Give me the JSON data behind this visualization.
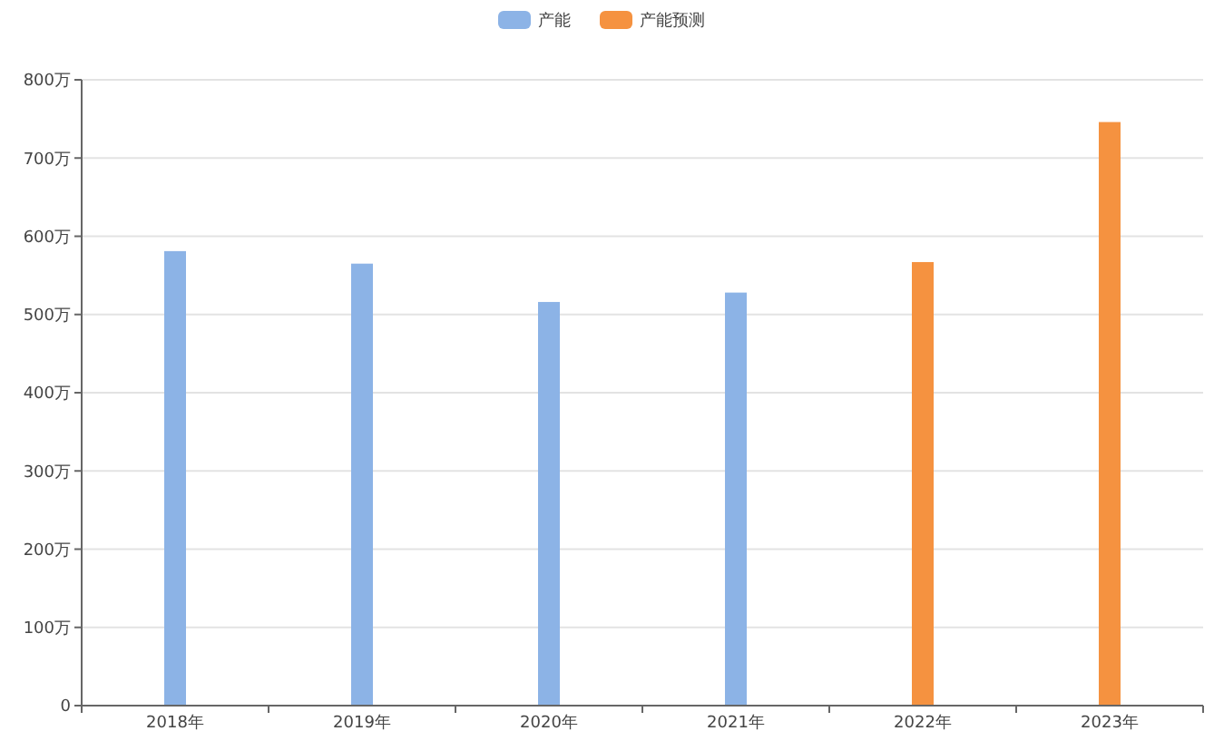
{
  "chart_data": {
    "type": "bar",
    "categories": [
      "2018年",
      "2019年",
      "2020年",
      "2021年",
      "2022年",
      "2023年"
    ],
    "series": [
      {
        "name": "产能",
        "color": "#8cb3e6",
        "values": [
          581,
          565,
          516,
          528,
          null,
          null
        ]
      },
      {
        "name": "产能预测",
        "color": "#f59240",
        "values": [
          null,
          null,
          null,
          null,
          567,
          746
        ]
      }
    ],
    "ylim": [
      0,
      800
    ],
    "yticks": [
      0,
      {
        "value": 100,
        "label": "100万"
      },
      {
        "value": 200,
        "label": "200万"
      },
      {
        "value": 300,
        "label": "300万"
      },
      {
        "value": 400,
        "label": "400万"
      },
      {
        "value": 500,
        "label": "500万"
      },
      {
        "value": 600,
        "label": "600万"
      },
      {
        "value": 700,
        "label": "700万"
      },
      {
        "value": 800,
        "label": "800万"
      }
    ],
    "grid": "y",
    "legend": "top"
  }
}
